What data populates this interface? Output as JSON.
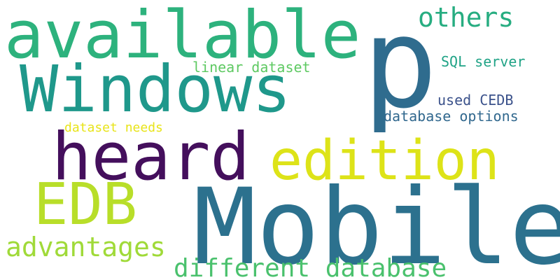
{
  "words": [
    {
      "text": "Mobile",
      "color": "#2c718e"
    },
    {
      "text": "p",
      "color": "#2f6c8e"
    },
    {
      "text": "available",
      "color": "#2db27d"
    },
    {
      "text": "Windows",
      "color": "#1f988b"
    },
    {
      "text": "heard",
      "color": "#440f5c"
    },
    {
      "text": "edition",
      "color": "#dde318"
    },
    {
      "text": "EDB",
      "color": "#b8de29"
    },
    {
      "text": "advantages",
      "color": "#a0da39"
    },
    {
      "text": "different database",
      "color": "#4ac16d"
    },
    {
      "text": "others",
      "color": "#27ad81"
    },
    {
      "text": "linear dataset",
      "color": "#5ec962"
    },
    {
      "text": "SQL server",
      "color": "#20a386"
    },
    {
      "text": "used CEDB",
      "color": "#3b528b"
    },
    {
      "text": "database options",
      "color": "#31688e"
    },
    {
      "text": "dataset needs",
      "color": "#e8e419"
    }
  ]
}
